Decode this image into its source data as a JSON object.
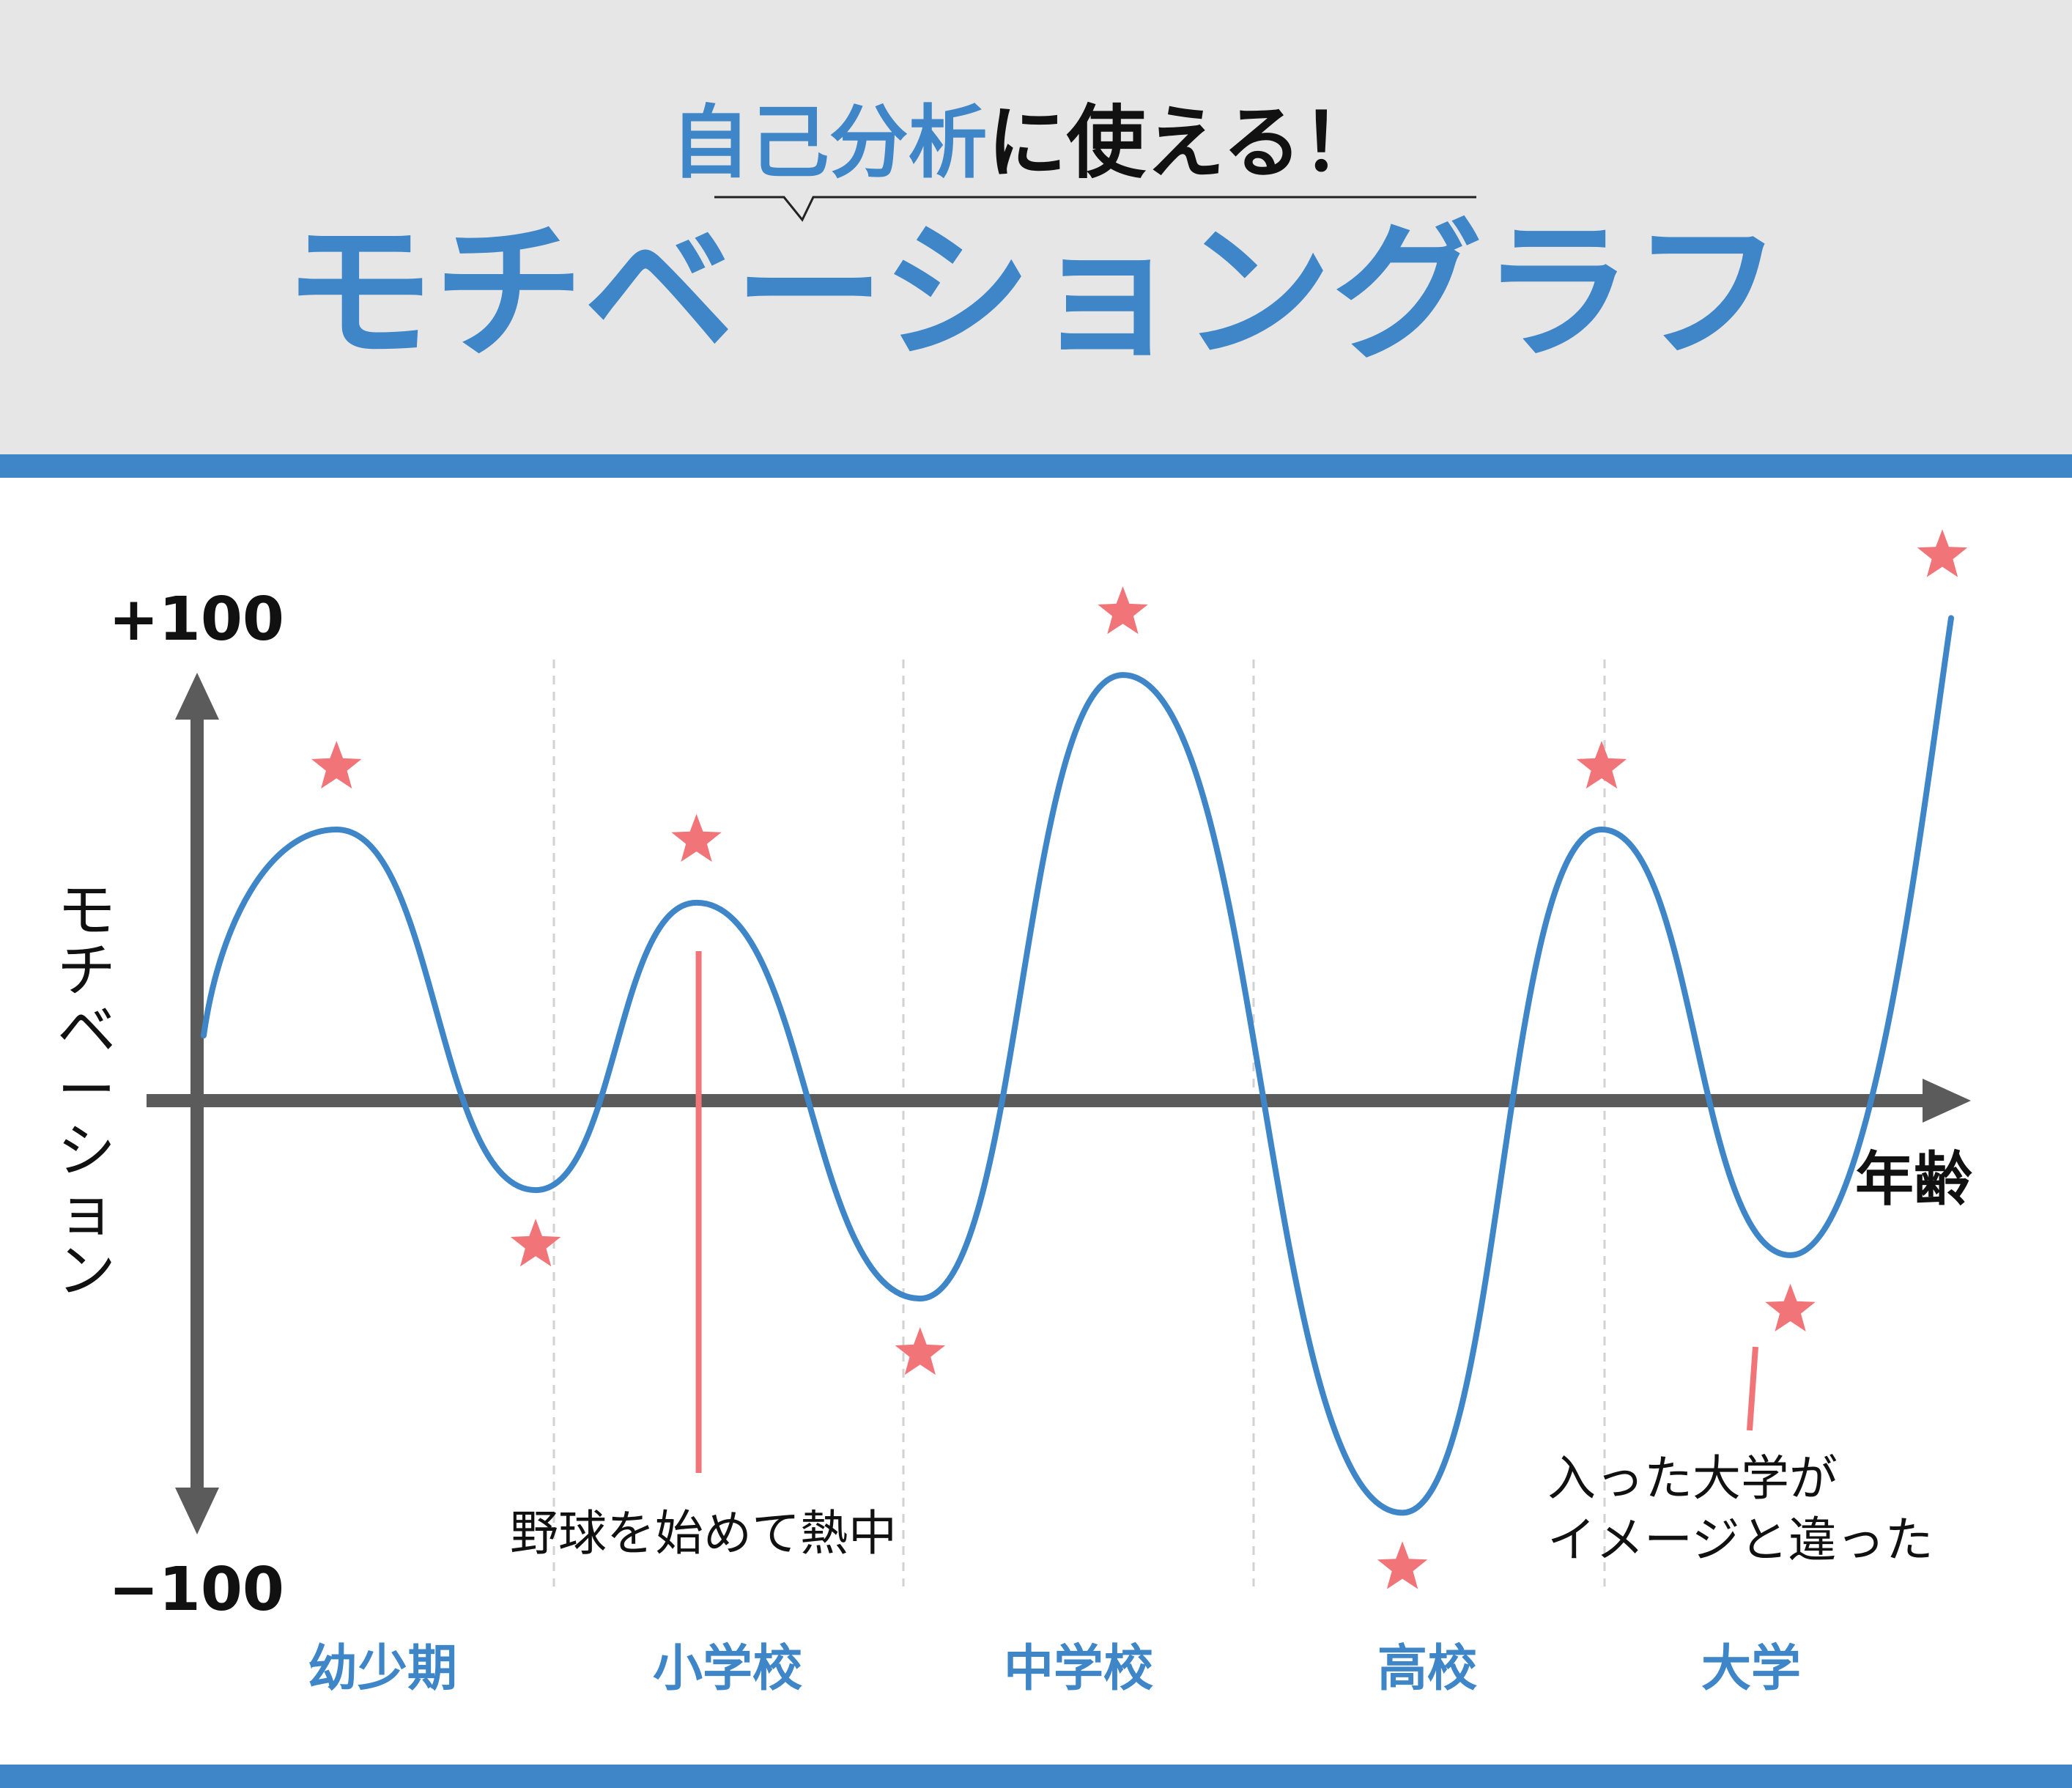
{
  "header": {
    "subtitle_highlight": "自己分析",
    "subtitle_rest": "に使える！",
    "title": "モチベーショングラフ"
  },
  "colors": {
    "accent": "#3e86c7",
    "star": "#f07478",
    "axis": "#5b5b5b",
    "header_bg": "#e6e6e6"
  },
  "chart_data": {
    "type": "line",
    "title": "モチベーショングラフ",
    "xlabel": "年齢",
    "ylabel": "モチベーション",
    "ylim": [
      -100,
      100
    ],
    "xlim": [
      0,
      5
    ],
    "y_max_label": "+100",
    "y_min_label": "−100",
    "categories": [
      "幼少期",
      "小学校",
      "中学校",
      "高校",
      "大学"
    ],
    "grid": "vertical dashed separators between stages",
    "series": [
      {
        "values": [
          {
            "x": 0.0,
            "y": 24
          },
          {
            "x": 0.38,
            "y": 100
          },
          {
            "x": 0.95,
            "y": -33
          },
          {
            "x": 1.41,
            "y": 73
          },
          {
            "x": 2.05,
            "y": -73
          },
          {
            "x": 2.63,
            "y": 157
          },
          {
            "x": 3.43,
            "y": -152
          },
          {
            "x": 4.0,
            "y": 100
          },
          {
            "x": 4.54,
            "y": -57
          },
          {
            "x": 5.0,
            "y": 178
          }
        ]
      }
    ],
    "annotations": [
      {
        "text": "野球を始めて熱中",
        "x": 1.41
      },
      {
        "text_lines": [
          "入った大学が",
          "イメージと違った"
        ],
        "x": 4.54
      }
    ]
  }
}
